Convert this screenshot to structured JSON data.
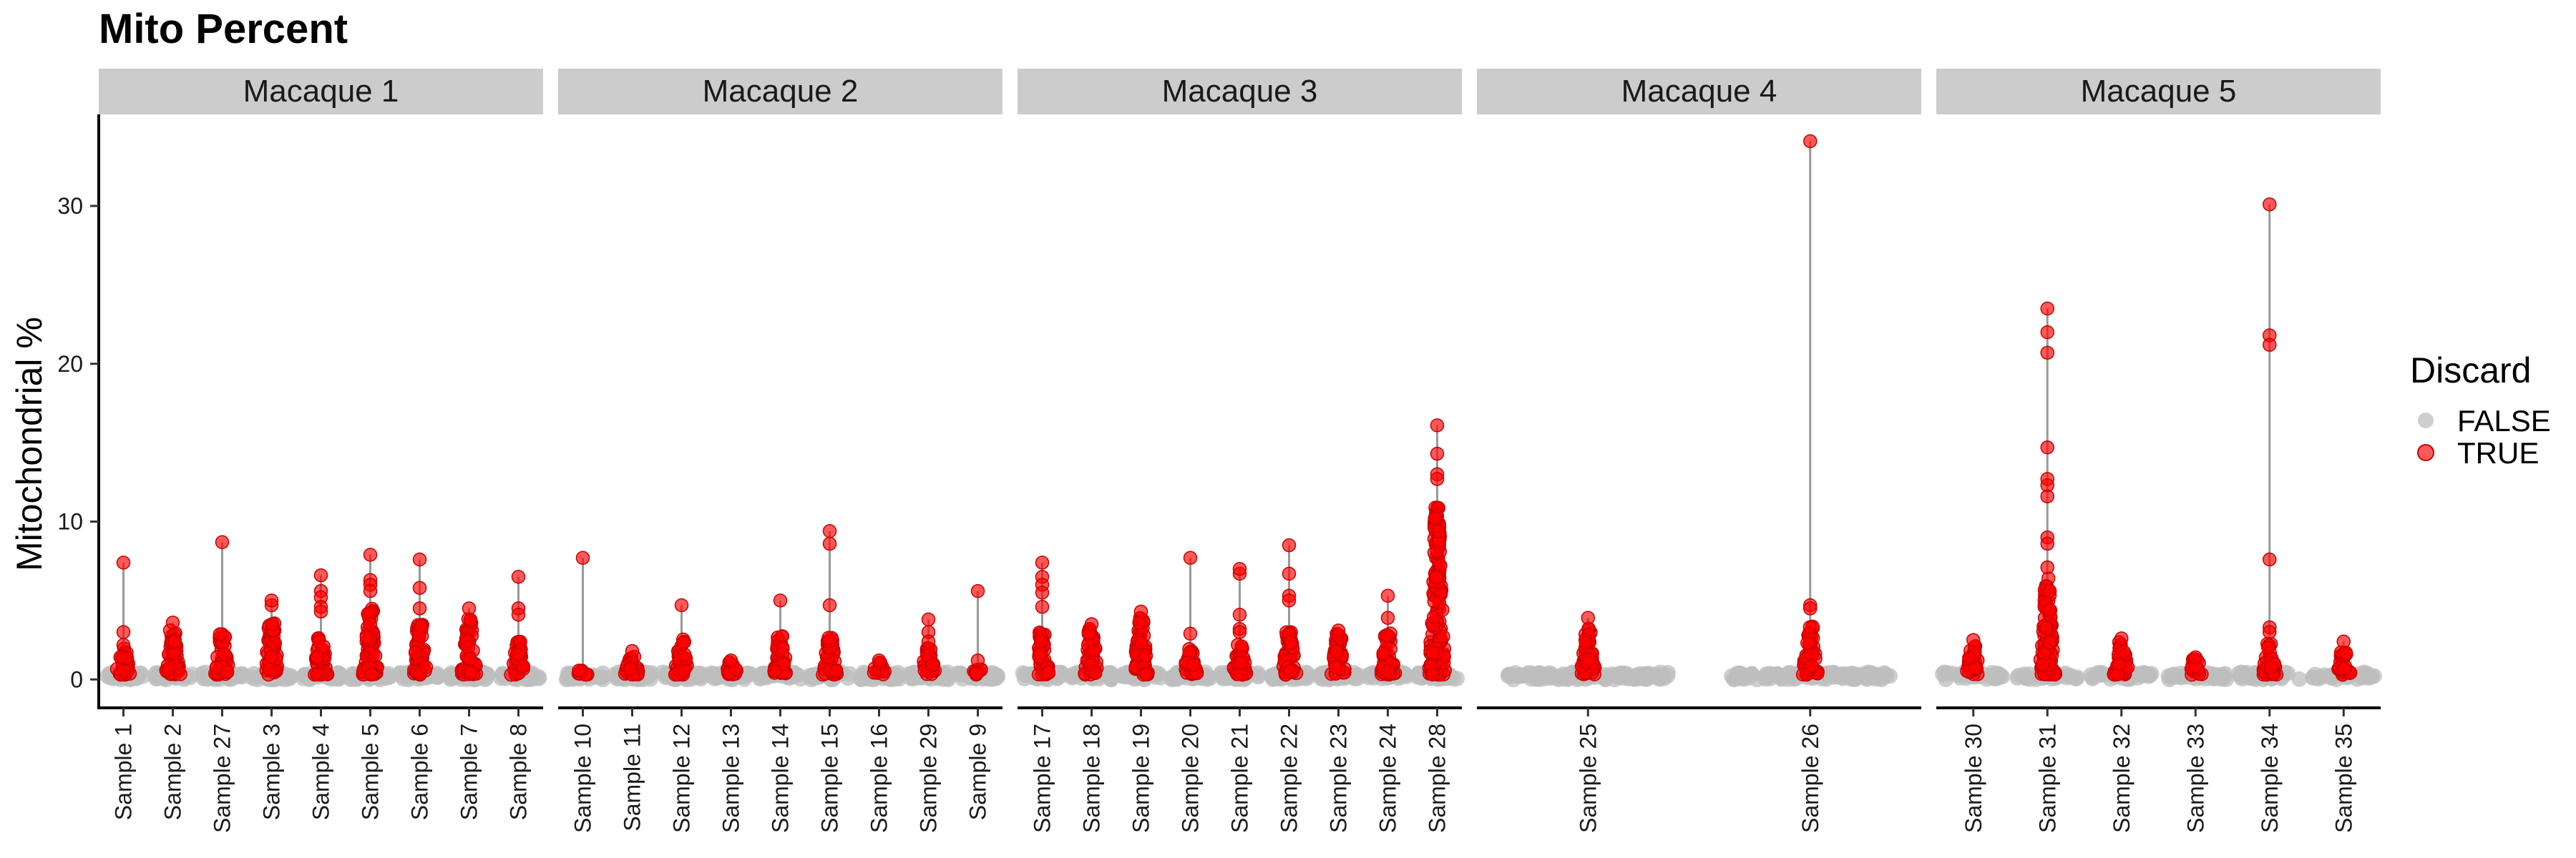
{
  "chart_data": {
    "type": "scatter",
    "title": "Mito Percent",
    "ylabel": "Mitochondrial %",
    "xlabel": "",
    "ylim": [
      -1.8,
      35.8
    ],
    "yticks": [
      0,
      10,
      20,
      30
    ],
    "grid": false,
    "legend": {
      "title": "Discard",
      "position": "right",
      "entries": [
        {
          "label": "FALSE",
          "color": "#bdbdbd"
        },
        {
          "label": "TRUE",
          "color": "#ff0000"
        }
      ]
    },
    "colors": {
      "false": "#bdbdbd",
      "true": "#ff0000",
      "range_line": "#999999",
      "strip": "#cccccc"
    },
    "panels": [
      {
        "name": "Macaque 1",
        "samples": [
          {
            "label": "Sample 1",
            "max": 7.4,
            "dense_top": 2.2,
            "outliers": [
              3.0
            ]
          },
          {
            "label": "Sample 2",
            "max": 3.6,
            "dense_top": 3.2,
            "outliers": []
          },
          {
            "label": "Sample 27",
            "max": 8.7,
            "dense_top": 3.0,
            "outliers": []
          },
          {
            "label": "Sample 3",
            "max": 5.0,
            "dense_top": 3.6,
            "outliers": [
              4.7
            ]
          },
          {
            "label": "Sample 4",
            "max": 6.6,
            "dense_top": 3.0,
            "outliers": [
              5.6,
              5.2,
              4.6,
              4.3
            ]
          },
          {
            "label": "Sample 5",
            "max": 7.9,
            "dense_top": 4.5,
            "outliers": [
              6.3,
              6.0,
              5.6
            ]
          },
          {
            "label": "Sample 6",
            "max": 7.6,
            "dense_top": 3.6,
            "outliers": [
              5.8,
              4.5
            ]
          },
          {
            "label": "Sample 7",
            "max": 4.5,
            "dense_top": 3.9,
            "outliers": []
          },
          {
            "label": "Sample 8",
            "max": 6.5,
            "dense_top": 2.4,
            "outliers": [
              4.5,
              4.1
            ]
          }
        ]
      },
      {
        "name": "Macaque 2",
        "samples": [
          {
            "label": "Sample 10",
            "max": 7.7,
            "dense_top": 0.6,
            "outliers": []
          },
          {
            "label": "Sample 11",
            "max": 1.8,
            "dense_top": 1.6,
            "outliers": []
          },
          {
            "label": "Sample 12",
            "max": 4.7,
            "dense_top": 2.6,
            "outliers": []
          },
          {
            "label": "Sample 13",
            "max": 1.2,
            "dense_top": 1.1,
            "outliers": []
          },
          {
            "label": "Sample 14",
            "max": 5.0,
            "dense_top": 2.8,
            "outliers": []
          },
          {
            "label": "Sample 15",
            "max": 9.4,
            "dense_top": 2.8,
            "outliers": [
              8.6,
              4.7
            ]
          },
          {
            "label": "Sample 16",
            "max": 1.2,
            "dense_top": 1.1,
            "outliers": []
          },
          {
            "label": "Sample 29",
            "max": 3.8,
            "dense_top": 2.0,
            "outliers": [
              3.0,
              2.4
            ]
          },
          {
            "label": "Sample 9",
            "max": 5.6,
            "dense_top": 0.7,
            "outliers": [
              1.2
            ]
          }
        ]
      },
      {
        "name": "Macaque 3",
        "samples": [
          {
            "label": "Sample 17",
            "max": 7.4,
            "dense_top": 3.0,
            "outliers": [
              6.5,
              6.0,
              5.5,
              4.6
            ]
          },
          {
            "label": "Sample 18",
            "max": 3.5,
            "dense_top": 3.2,
            "outliers": []
          },
          {
            "label": "Sample 19",
            "max": 4.3,
            "dense_top": 4.0,
            "outliers": []
          },
          {
            "label": "Sample 20",
            "max": 7.7,
            "dense_top": 2.0,
            "outliers": [
              2.9
            ]
          },
          {
            "label": "Sample 21",
            "max": 7.0,
            "dense_top": 2.2,
            "outliers": [
              6.7,
              4.1,
              3.2,
              3.0
            ]
          },
          {
            "label": "Sample 22",
            "max": 8.5,
            "dense_top": 3.0,
            "outliers": [
              6.7,
              5.3,
              5.0
            ]
          },
          {
            "label": "Sample 23",
            "max": 3.1,
            "dense_top": 2.9,
            "outliers": []
          },
          {
            "label": "Sample 24",
            "max": 5.3,
            "dense_top": 3.0,
            "outliers": [
              3.9
            ]
          },
          {
            "label": "Sample 28",
            "max": 16.1,
            "dense_top": 11.0,
            "outliers": [
              14.3,
              13.0,
              12.7
            ]
          }
        ]
      },
      {
        "name": "Macaque 4",
        "samples": [
          {
            "label": "Sample 25",
            "max": 3.9,
            "dense_top": 3.4,
            "outliers": []
          },
          {
            "label": "Sample 26",
            "max": 34.1,
            "dense_top": 3.4,
            "outliers": [
              4.7,
              4.5
            ]
          }
        ]
      },
      {
        "name": "Macaque 5",
        "samples": [
          {
            "label": "Sample 30",
            "max": 2.5,
            "dense_top": 2.2,
            "outliers": []
          },
          {
            "label": "Sample 31",
            "max": 23.5,
            "dense_top": 6.5,
            "outliers": [
              22.0,
              20.7,
              14.7,
              12.7,
              12.3,
              11.6,
              9.0,
              8.6,
              7.1
            ]
          },
          {
            "label": "Sample 32",
            "max": 2.6,
            "dense_top": 2.4,
            "outliers": []
          },
          {
            "label": "Sample 33",
            "max": 1.4,
            "dense_top": 1.3,
            "outliers": []
          },
          {
            "label": "Sample 34",
            "max": 30.1,
            "dense_top": 2.3,
            "outliers": [
              21.8,
              21.2,
              7.6,
              3.3,
              3.0
            ]
          },
          {
            "label": "Sample 35",
            "max": 2.4,
            "dense_top": 1.9,
            "outliers": []
          }
        ]
      }
    ]
  }
}
